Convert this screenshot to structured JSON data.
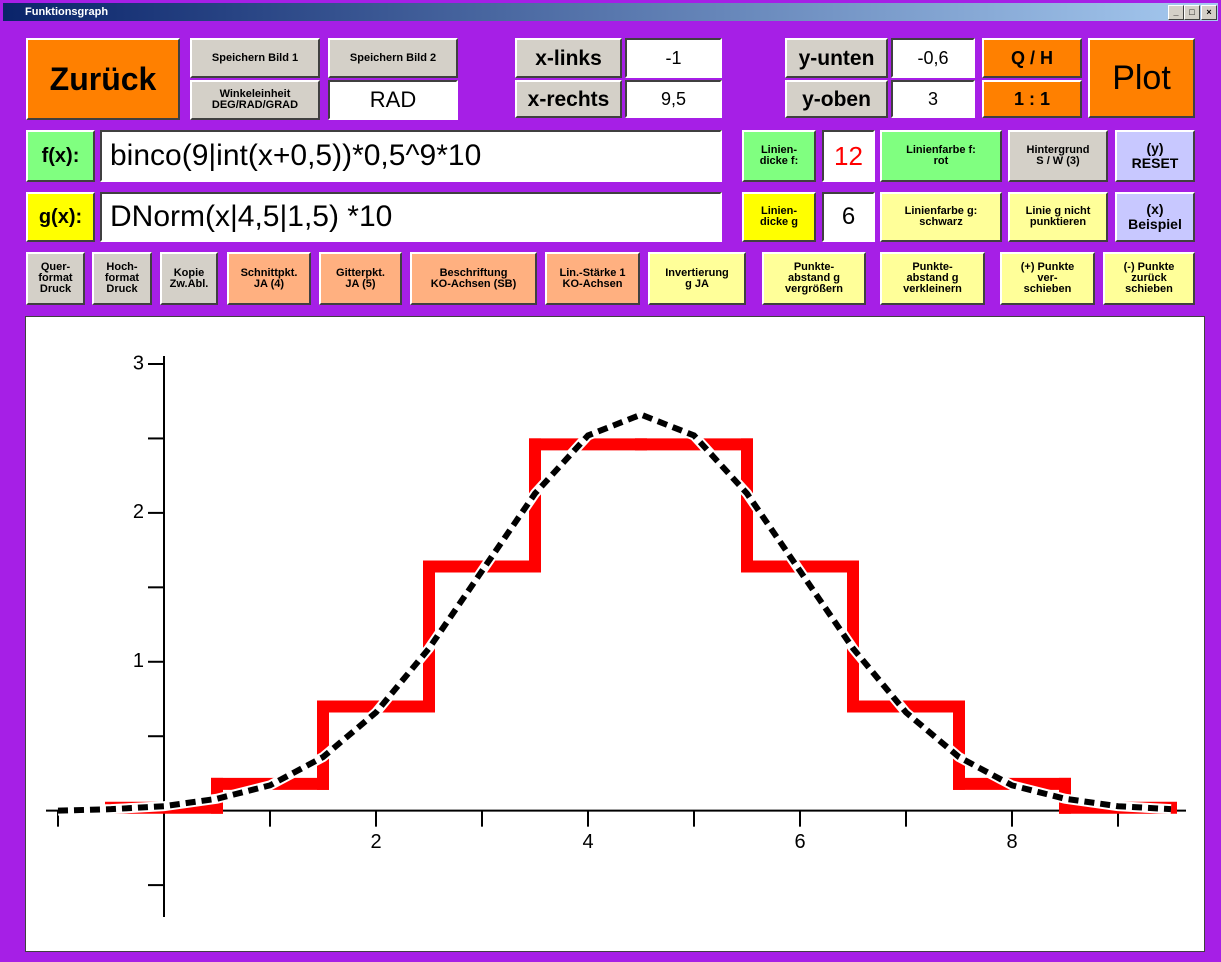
{
  "window": {
    "title": "Funktionsgraph"
  },
  "toolbar": {
    "back": "Zurück",
    "save_image_1": "Speichern Bild 1",
    "save_image_2": "Speichern Bild 2",
    "angle_unit": "Winkeleinheit\nDEG/RAD/GRAD",
    "angle_value": "RAD",
    "x_left_label": "x-links",
    "x_left": "-1",
    "x_right_label": "x-rechts",
    "x_right": "9,5",
    "y_bottom_label": "y-unten",
    "y_bottom": "-0,6",
    "y_top_label": "y-oben",
    "y_top": "3",
    "qh": "Q / H",
    "ratio": "1 : 1",
    "plot": "Plot"
  },
  "f_row": {
    "label": "f(x):",
    "formula": "binco(9|int(x+0,5))*0,5^9*10",
    "width_label": "Linien-\ndicke f:",
    "width": "12",
    "color": "Linienfarbe f:\nrot",
    "background": "Hintergrund\nS / W (3)",
    "reset": "(y)\nRESET"
  },
  "g_row": {
    "label": "g(x):",
    "formula": "DNorm(x|4,5|1,5) *10",
    "width_label": "Linien-\ndicke g",
    "width": "6",
    "color": "Linienfarbe g:\nschwarz",
    "dotted": "Linie g nicht\npunktieren",
    "example": "(x)\nBeispiel"
  },
  "options": [
    "Quer-\nformat\nDruck",
    "Hoch-\nformat\nDruck",
    "Kopie\nZw.Abl.",
    "Schnittpkt.\nJA (4)",
    "Gitterpkt.\nJA (5)",
    "Beschriftung\nKO-Achsen  (SB)",
    "Lin.-Stärke 1\nKO-Achsen",
    "Invertierung\ng  JA",
    "Punkte-\nabstand g\nvergrößern",
    "Punkte-\nabstand g\nverkleinern",
    "(+) Punkte\nver-\nschieben",
    "(-) Punkte\nzurück\nschieben"
  ],
  "chart_data": {
    "type": "line",
    "xlim": [
      -1,
      9.5
    ],
    "ylim": [
      -0.6,
      3
    ],
    "xticks": [
      2,
      4,
      6,
      8
    ],
    "xminor": [
      -1,
      1,
      3,
      5,
      7,
      9
    ],
    "yticks": [
      1,
      2,
      3
    ],
    "yminor": [
      -0.5,
      0.5,
      1.5,
      2.5
    ],
    "series": [
      {
        "color": "#ff0000",
        "step": true,
        "line_width": 12,
        "bins": [
          -0.5,
          0.5,
          1.5,
          2.5,
          3.5,
          4.5,
          5.5,
          6.5,
          7.5,
          8.5,
          9.5
        ],
        "values": [
          0.02,
          0.18,
          0.7,
          1.64,
          2.46,
          2.46,
          1.64,
          0.7,
          0.18,
          0.02
        ]
      },
      {
        "color": "#000000",
        "dashed": true,
        "line_width": 6,
        "x": [
          -1,
          -0.5,
          0,
          0.5,
          1,
          1.5,
          2,
          2.5,
          3,
          3.5,
          4,
          4.5,
          5,
          5.5,
          6,
          6.5,
          7,
          7.5,
          8,
          8.5,
          9,
          9.5
        ],
        "values": [
          0.0,
          0.01,
          0.03,
          0.08,
          0.17,
          0.36,
          0.66,
          1.09,
          1.61,
          2.13,
          2.52,
          2.66,
          2.52,
          2.13,
          1.61,
          1.09,
          0.66,
          0.36,
          0.17,
          0.08,
          0.03,
          0.01
        ]
      }
    ]
  }
}
